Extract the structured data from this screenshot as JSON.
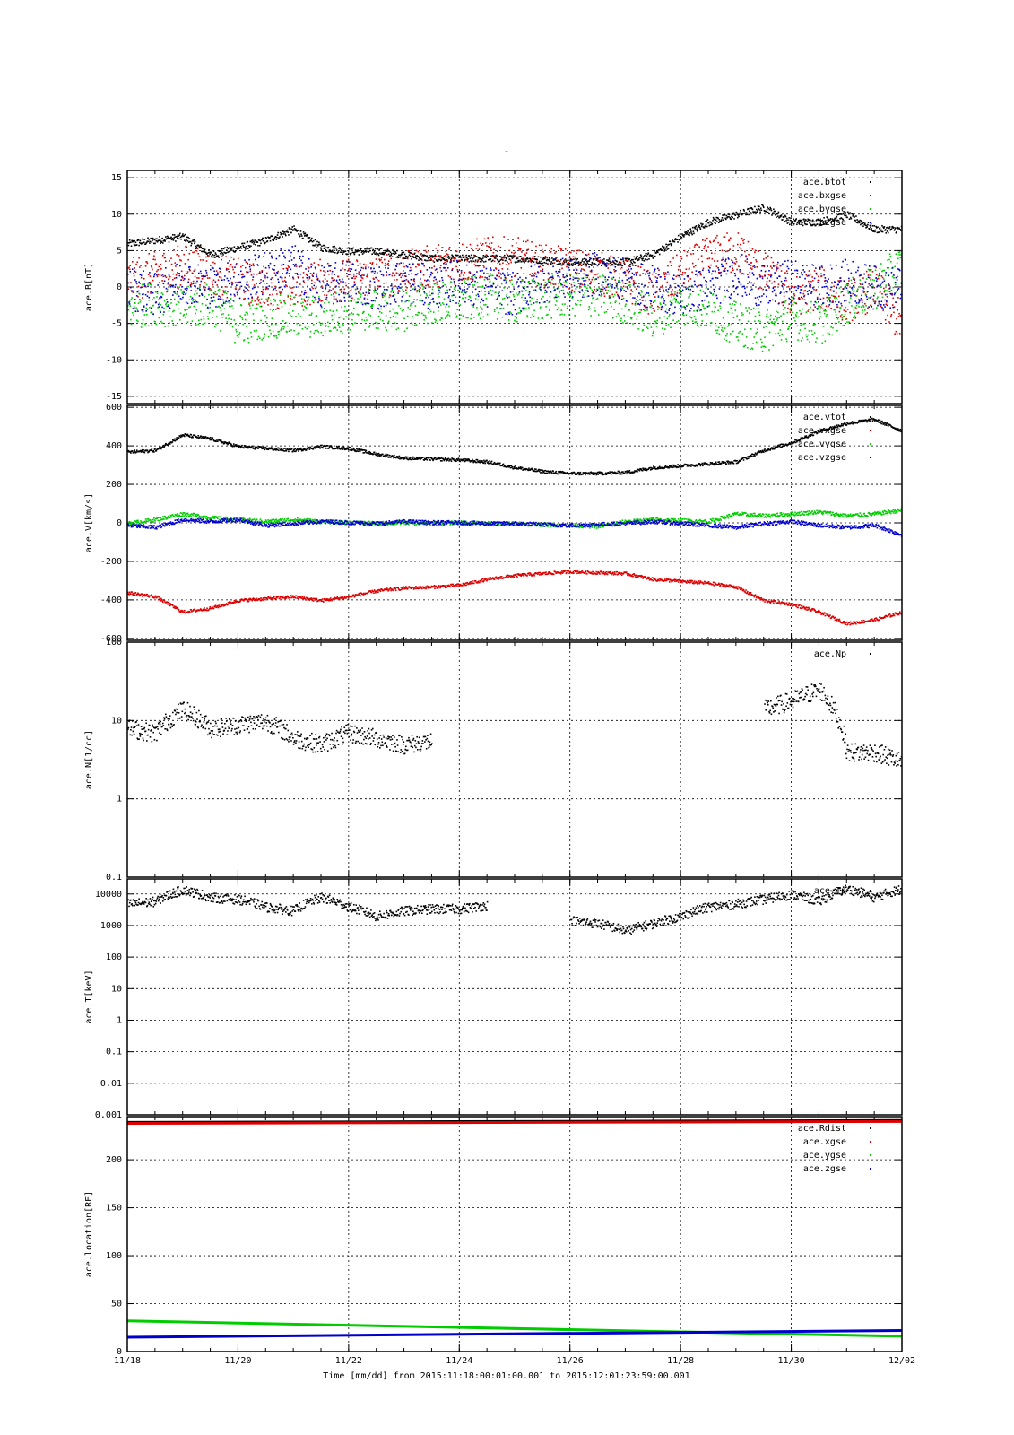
{
  "title": "-",
  "x_title": "Time [mm/dd]  from 2015:11:18:00:01:00.001  to  2015:12:01:23:59:00.001",
  "colors": {
    "black": "#000000",
    "red": "#dd0000",
    "green": "#00cc00",
    "blue": "#0000cc"
  },
  "chart_data": [
    {
      "type": "scatter",
      "ylabel": "ace.B[nT]",
      "ylim": [
        -16,
        16
      ],
      "scale": "linear",
      "yticks": [
        15,
        10,
        5,
        0,
        -5,
        -10,
        -15
      ],
      "ytick_labels": [
        "15",
        "10",
        "5",
        "0",
        "-5",
        "-10",
        "-15"
      ],
      "x_days": [
        0,
        0.5,
        1,
        1.5,
        2,
        2.5,
        3,
        3.5,
        4,
        4.5,
        5,
        5.5,
        6,
        6.5,
        7,
        7.5,
        8,
        8.5,
        9,
        9.5,
        10,
        10.5,
        11,
        11.5,
        12,
        12.5,
        13,
        13.5,
        14
      ],
      "series": [
        {
          "name": "ace.btot",
          "color": "black",
          "spread": 0.5,
          "values": [
            6,
            6.5,
            7,
            4.5,
            5.5,
            6.5,
            8,
            5.5,
            5,
            5,
            4.5,
            4,
            4,
            4,
            4,
            3.8,
            3.5,
            3.5,
            3.5,
            4.5,
            7,
            9,
            10,
            11,
            9,
            9,
            10,
            8,
            8
          ]
        },
        {
          "name": "ace.bxgse",
          "color": "red",
          "spread": 3,
          "values": [
            1,
            2,
            3,
            2,
            1,
            0,
            0,
            1,
            1,
            1.5,
            2,
            3,
            3.5,
            4,
            4,
            3,
            2.5,
            2,
            1,
            -1,
            2,
            4,
            5,
            2,
            -1,
            0,
            -2,
            0,
            -5
          ]
        },
        {
          "name": "ace.bygse",
          "color": "green",
          "spread": 3,
          "values": [
            -3,
            -2,
            -3,
            -2,
            -5,
            -4,
            -4,
            -4,
            -3,
            -3,
            -3,
            -2,
            -2,
            -1,
            -2,
            -1.5,
            -1,
            -1,
            -2,
            -4,
            -2,
            -3,
            -5,
            -6,
            -4,
            -5,
            -2,
            0,
            3
          ]
        },
        {
          "name": "ace.bzgse",
          "color": "blue",
          "spread": 3,
          "values": [
            0,
            -1,
            1,
            0,
            1,
            2,
            3,
            0,
            1,
            0,
            1,
            0,
            1,
            0,
            -1,
            1,
            1,
            2,
            1,
            0,
            -1,
            0,
            2,
            0,
            1,
            0,
            1,
            0,
            0
          ]
        }
      ]
    },
    {
      "type": "scatter",
      "ylabel": "ace.V[km/s]",
      "ylim": [
        -610,
        610
      ],
      "scale": "linear",
      "yticks": [
        600,
        400,
        200,
        0,
        -200,
        -400,
        -600
      ],
      "ytick_labels": [
        "600",
        "400",
        "200",
        "0",
        "-200",
        "-400",
        "-600"
      ],
      "x_days": [
        0,
        0.5,
        1,
        1.5,
        2,
        2.5,
        3,
        3.5,
        4,
        4.5,
        5,
        5.5,
        6,
        6.5,
        7,
        7.5,
        8,
        8.5,
        9,
        9.5,
        10,
        10.5,
        11,
        11.5,
        12,
        12.5,
        13,
        13.5,
        14
      ],
      "series": [
        {
          "name": "ace.vtot",
          "color": "black",
          "spread": 8,
          "values": [
            370,
            380,
            460,
            440,
            400,
            390,
            380,
            400,
            390,
            360,
            340,
            335,
            330,
            320,
            290,
            270,
            260,
            260,
            265,
            290,
            300,
            310,
            320,
            380,
            420,
            480,
            520,
            540,
            480
          ]
        },
        {
          "name": "ace.vxgse",
          "color": "red",
          "spread": 8,
          "values": [
            -360,
            -380,
            -460,
            -440,
            -400,
            -390,
            -380,
            -400,
            -380,
            -350,
            -335,
            -330,
            -320,
            -290,
            -270,
            -260,
            -250,
            -255,
            -260,
            -290,
            -300,
            -310,
            -330,
            -400,
            -420,
            -460,
            -520,
            -500,
            -460
          ]
        },
        {
          "name": "ace.vygse",
          "color": "green",
          "spread": 10,
          "values": [
            0,
            20,
            50,
            30,
            20,
            10,
            20,
            10,
            5,
            0,
            5,
            0,
            5,
            0,
            0,
            -5,
            -10,
            -15,
            10,
            20,
            15,
            10,
            50,
            40,
            50,
            60,
            40,
            50,
            70
          ]
        },
        {
          "name": "ace.vzgse",
          "color": "blue",
          "spread": 10,
          "values": [
            -10,
            -20,
            20,
            10,
            20,
            -10,
            0,
            10,
            5,
            0,
            10,
            5,
            5,
            0,
            0,
            -5,
            -10,
            -5,
            0,
            10,
            0,
            -10,
            -20,
            0,
            10,
            -10,
            -20,
            -10,
            -60
          ]
        }
      ]
    },
    {
      "type": "scatter",
      "ylabel": "ace.N[1/cc]",
      "ylim": [
        0.1,
        100
      ],
      "scale": "log",
      "yticks": [
        100,
        10,
        1,
        0.1
      ],
      "ytick_labels": [
        "100",
        "10",
        "1",
        "0.1"
      ],
      "x_days": [
        0,
        0.5,
        1,
        1.5,
        2,
        2.5,
        3,
        3.5,
        4,
        4.5,
        5,
        5.5,
        6,
        6.5,
        7,
        7.5,
        8,
        8.5,
        9,
        9.5,
        10,
        10.5,
        11,
        11.5,
        12,
        12.5,
        13,
        13.5,
        14
      ],
      "series": [
        {
          "name": "ace.Np",
          "color": "black",
          "spread": 0.12,
          "values": [
            8,
            7,
            14,
            8,
            9,
            10,
            6,
            5,
            7,
            6,
            5,
            5.5,
            null,
            null,
            null,
            null,
            null,
            null,
            null,
            null,
            null,
            null,
            null,
            14,
            18,
            25,
            4,
            4,
            3
          ]
        }
      ]
    },
    {
      "type": "scatter",
      "ylabel": "ace.T[keV]",
      "ylim": [
        0.001,
        30000
      ],
      "scale": "log",
      "yticks": [
        10000,
        1000,
        100,
        10,
        1,
        0.1,
        0.01,
        0.001
      ],
      "ytick_labels": [
        "10000",
        "1000",
        "100",
        "10",
        "1",
        "0.1",
        "0.01",
        "0.001"
      ],
      "x_days": [
        0,
        0.5,
        1,
        1.5,
        2,
        2.5,
        3,
        3.5,
        4,
        4.5,
        5,
        5.5,
        6,
        6.5,
        7,
        7.5,
        8,
        8.5,
        9,
        9.5,
        10,
        10.5,
        11,
        11.5,
        12,
        12.5,
        13,
        13.5,
        14
      ],
      "series": [
        {
          "name": "ace.Tp",
          "color": "black",
          "spread": 0.15,
          "values": [
            5000,
            6000,
            14000,
            8000,
            7000,
            4000,
            3000,
            8000,
            4000,
            2000,
            3000,
            3500,
            3500,
            4500,
            null,
            null,
            1500,
            1200,
            700,
            1200,
            2000,
            4000,
            5000,
            7000,
            10000,
            6000,
            15000,
            8000,
            15000
          ]
        }
      ]
    },
    {
      "type": "line",
      "ylabel": "ace.location[RE]",
      "ylim": [
        0,
        245
      ],
      "scale": "linear",
      "yticks": [
        200,
        150,
        100,
        50,
        0
      ],
      "ytick_labels": [
        "200",
        "150",
        "100",
        "50",
        "0"
      ],
      "x_days": [
        0,
        14
      ],
      "series": [
        {
          "name": "ace.Rdist",
          "color": "black",
          "values": [
            239,
            241
          ]
        },
        {
          "name": "ace.xgse",
          "color": "red",
          "values": [
            238,
            240
          ]
        },
        {
          "name": "ace.ygse",
          "color": "green",
          "values": [
            32,
            16
          ]
        },
        {
          "name": "ace.zgse",
          "color": "blue",
          "values": [
            15,
            22
          ]
        }
      ]
    }
  ],
  "xaxis": {
    "range_days": [
      0,
      14
    ],
    "ticks": [
      0,
      2,
      4,
      6,
      8,
      10,
      12,
      14
    ],
    "tick_labels": [
      "11/18",
      "11/20",
      "11/22",
      "11/24",
      "11/26",
      "11/28",
      "11/30",
      "12/02"
    ]
  }
}
